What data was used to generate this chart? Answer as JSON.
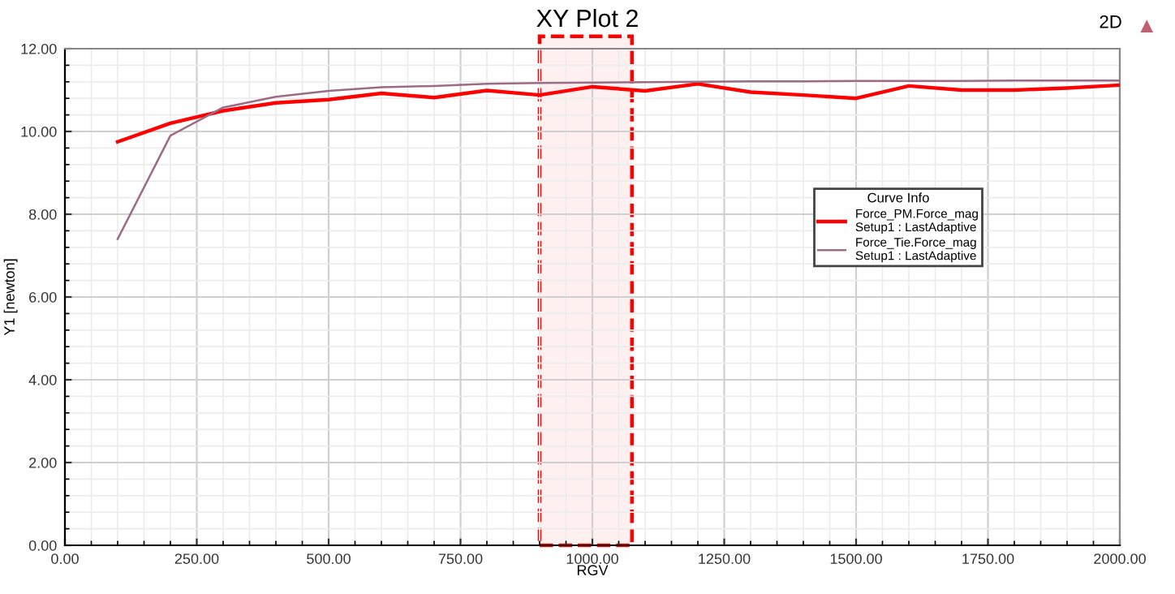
{
  "chart_data": {
    "type": "line",
    "title": "XY Plot 2",
    "xlabel": "RGV",
    "ylabel": "Y1 [newton]",
    "legend_title": "Curve Info",
    "annotations": [
      "2D"
    ],
    "x": [
      100,
      200,
      300,
      400,
      500,
      600,
      700,
      800,
      900,
      1000,
      1100,
      1200,
      1300,
      1400,
      1500,
      1600,
      1700,
      1800,
      1900,
      2000
    ],
    "series": [
      {
        "name": "Force_PM.Force_mag\nSetup1 : LastAdaptive",
        "color": "#ff0000",
        "values": [
          9.75,
          10.2,
          10.5,
          10.69,
          10.77,
          10.92,
          10.82,
          10.99,
          10.88,
          11.08,
          10.98,
          11.15,
          10.95,
          10.88,
          10.8,
          11.1,
          11.0,
          11.0,
          11.05,
          11.12
        ]
      },
      {
        "name": "Force_Tie.Force_mag\nSetup1 : LastAdaptive",
        "color": "#9c6b86",
        "values": [
          7.4,
          9.9,
          10.58,
          10.84,
          10.98,
          11.07,
          11.1,
          11.15,
          11.17,
          11.18,
          11.19,
          11.2,
          11.21,
          11.21,
          11.22,
          11.22,
          11.22,
          11.23,
          11.23,
          11.23
        ]
      }
    ],
    "bands": [
      {
        "axis": "x",
        "from": 900,
        "to": 1075,
        "color": "#ff0000"
      }
    ],
    "xlim": [
      0,
      2000
    ],
    "xticks": [
      {
        "value": 0,
        "label": "0.00"
      },
      {
        "value": 250,
        "label": "250.00"
      },
      {
        "value": 500,
        "label": "500.00"
      },
      {
        "value": 750,
        "label": "750.00"
      },
      {
        "value": 1000,
        "label": "1000.00"
      },
      {
        "value": 1250,
        "label": "1250.00"
      },
      {
        "value": 1500,
        "label": "1500.00"
      },
      {
        "value": 1750,
        "label": "1750.00"
      },
      {
        "value": 2000,
        "label": "2000.00"
      }
    ],
    "ylim": [
      0,
      12
    ],
    "yticks": [
      {
        "value": 0,
        "label": "0.00"
      },
      {
        "value": 2,
        "label": "2.00"
      },
      {
        "value": 4,
        "label": "4.00"
      },
      {
        "value": 6,
        "label": "6.00"
      },
      {
        "value": 8,
        "label": "8.00"
      },
      {
        "value": 10,
        "label": "10.00"
      },
      {
        "value": 12,
        "label": "12.00"
      }
    ],
    "grid": true,
    "legend": "center right",
    "marker": "none",
    "line_style": "solid"
  }
}
